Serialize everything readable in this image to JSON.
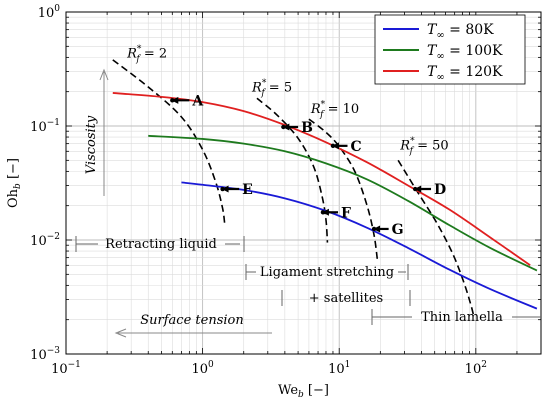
{
  "chart_data": {
    "type": "line",
    "xlabel": "We",
    "xlabel_sub": "b",
    "xlabel_unit": "[−]",
    "ylabel": "Oh",
    "ylabel_sub": "b",
    "ylabel_unit": "[−]",
    "xscale": "log",
    "yscale": "log",
    "xlim": [
      0.1,
      300
    ],
    "ylim": [
      0.001,
      1
    ],
    "grid": true,
    "legend_position": "top-right",
    "x_ticks": [
      {
        "value": 0.1,
        "base": "10",
        "exp": "−1"
      },
      {
        "value": 1,
        "base": "10",
        "exp": "0"
      },
      {
        "value": 10,
        "base": "10",
        "exp": "1"
      },
      {
        "value": 100,
        "base": "10",
        "exp": "2"
      }
    ],
    "y_ticks": [
      {
        "value": 0.001,
        "base": "10",
        "exp": "−3"
      },
      {
        "value": 0.01,
        "base": "10",
        "exp": "−2"
      },
      {
        "value": 0.1,
        "base": "10",
        "exp": "−1"
      },
      {
        "value": 1,
        "base": "10",
        "exp": "0"
      }
    ],
    "series": [
      {
        "name": "T∞ = 80K",
        "legend_main": "T",
        "legend_sub": "∞",
        "legend_rest": " = 80K",
        "color": "#1a1ad6",
        "x": [
          0.7,
          1,
          2,
          4,
          8,
          16,
          32,
          64,
          128,
          280
        ],
        "y": [
          0.032,
          0.0305,
          0.0275,
          0.0232,
          0.018,
          0.0128,
          0.0085,
          0.0055,
          0.0037,
          0.0025
        ]
      },
      {
        "name": "T∞ = 100K",
        "legend_main": "T",
        "legend_sub": "∞",
        "legend_rest": " = 100K",
        "color": "#1e7a1e",
        "x": [
          0.4,
          1,
          2,
          4,
          8,
          16,
          32,
          64,
          128,
          280
        ],
        "y": [
          0.082,
          0.077,
          0.07,
          0.06,
          0.047,
          0.034,
          0.022,
          0.0135,
          0.0085,
          0.0054
        ]
      },
      {
        "name": "T∞ = 120K",
        "legend_main": "T",
        "legend_sub": "∞",
        "legend_rest": " = 120K",
        "color": "#e02020",
        "x": [
          0.22,
          0.5,
          1,
          2,
          4,
          8,
          16,
          32,
          64,
          128,
          250
        ],
        "y": [
          0.195,
          0.18,
          0.162,
          0.135,
          0.102,
          0.072,
          0.048,
          0.03,
          0.0185,
          0.0105,
          0.006
        ]
      }
    ],
    "constant_rf_curves": [
      {
        "label_main": "R",
        "label_sup": "*",
        "label_sub": "f",
        "label_rest": " = 2",
        "label_at": [
          0.28,
          0.4
        ],
        "x": [
          0.22,
          0.4,
          0.7,
          1.0,
          1.25,
          1.4,
          1.45
        ],
        "y": [
          0.38,
          0.22,
          0.12,
          0.062,
          0.032,
          0.019,
          0.014
        ]
      },
      {
        "label_main": "R",
        "label_sup": "*",
        "label_sub": "f",
        "label_rest": " = 5",
        "label_at": [
          2.3,
          0.2
        ],
        "x": [
          2.5,
          3.5,
          5,
          6.5,
          7.5,
          8.0,
          8.2
        ],
        "y": [
          0.175,
          0.125,
          0.078,
          0.044,
          0.024,
          0.015,
          0.0095
        ]
      },
      {
        "label_main": "R",
        "label_sup": "*",
        "label_sub": "f",
        "label_rest": " = 10",
        "label_at": [
          6.2,
          0.13
        ],
        "x": [
          6,
          8,
          10,
          13,
          16,
          18,
          19
        ],
        "y": [
          0.115,
          0.088,
          0.066,
          0.04,
          0.02,
          0.011,
          0.0068
        ]
      },
      {
        "label_main": "R",
        "label_sup": "*",
        "label_sub": "f",
        "label_rest": " = 50",
        "label_at": [
          28,
          0.062
        ],
        "x": [
          27,
          37,
          52,
          68,
          82,
          92,
          97
        ],
        "y": [
          0.05,
          0.027,
          0.014,
          0.0075,
          0.0042,
          0.0027,
          0.0021
        ]
      }
    ],
    "points": [
      {
        "label": "A",
        "x": 0.6,
        "y": 0.168,
        "x_end": 0.8
      },
      {
        "label": "B",
        "x": 3.9,
        "y": 0.098,
        "x_end": 5.0
      },
      {
        "label": "C",
        "x": 9.0,
        "y": 0.067,
        "x_end": 11.5
      },
      {
        "label": "D",
        "x": 36,
        "y": 0.028,
        "x_end": 47
      },
      {
        "label": "E",
        "x": 1.4,
        "y": 0.028,
        "x_end": 1.85
      },
      {
        "label": "F",
        "x": 7.6,
        "y": 0.0175,
        "x_end": 9.8
      },
      {
        "label": "G",
        "x": 18,
        "y": 0.0125,
        "x_end": 23
      }
    ],
    "annotations": {
      "viscosity": "Viscosity",
      "surface_tension": "Surface tension",
      "retracting_liquid": "Retracting liquid",
      "ligament_stretching": "Ligament stretching",
      "satellites": "+ satellites",
      "thin_lamella": "Thin lamella"
    }
  }
}
